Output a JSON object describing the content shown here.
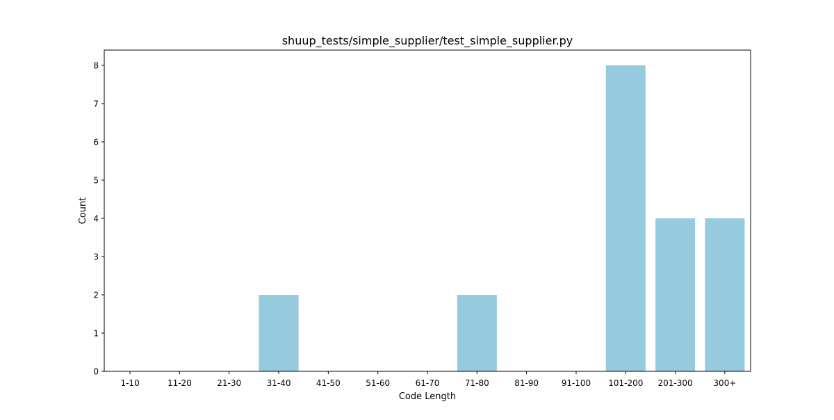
{
  "chart_data": {
    "type": "bar",
    "title": "shuup_tests/simple_supplier/test_simple_supplier.py",
    "xlabel": "Code Length",
    "ylabel": "Count",
    "categories": [
      "1-10",
      "11-20",
      "21-30",
      "31-40",
      "41-50",
      "51-60",
      "61-70",
      "71-80",
      "81-90",
      "91-100",
      "101-200",
      "201-300",
      "300+"
    ],
    "values": [
      0,
      0,
      0,
      2,
      0,
      0,
      0,
      2,
      0,
      0,
      8,
      4,
      4
    ],
    "ylim": [
      0,
      8.4
    ],
    "yticks": [
      0,
      1,
      2,
      3,
      4,
      5,
      6,
      7,
      8
    ],
    "bar_color": "#96cadf",
    "grid": false,
    "legend": "none"
  }
}
